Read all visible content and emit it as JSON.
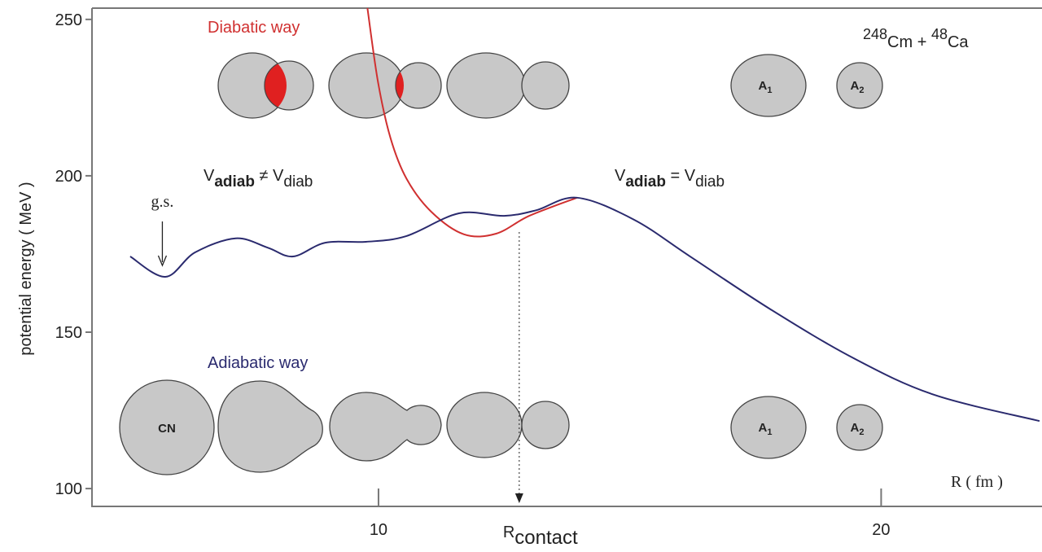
{
  "chart_data": {
    "type": "line",
    "y_label": "potential energy ( MeV )",
    "x_label": "R ( fm )",
    "xlim": [
      4.3,
      23.2
    ],
    "ylim": [
      94.3,
      253.6
    ],
    "xticks": [
      10,
      20
    ],
    "yticks": [
      100,
      150,
      200,
      250
    ],
    "series": [
      {
        "name": "Adiabatic way",
        "color": "#2a2a6e",
        "x": [
          5.06,
          5.76,
          6.35,
          7.16,
          7.8,
          8.3,
          8.94,
          9.75,
          10.55,
          11.6,
          12.5,
          13.14,
          13.95,
          15.08,
          16.2,
          17.8,
          19.45,
          21.05,
          23.15
        ],
        "values": [
          174.2,
          167.7,
          175.5,
          180,
          177,
          174.2,
          178.6,
          178.9,
          180.7,
          188,
          187.2,
          189,
          193,
          186,
          174.2,
          157.3,
          141.7,
          130,
          121.6
        ]
      },
      {
        "name": "Diabatic way",
        "color": "#d03030",
        "x": [
          9.78,
          9.99,
          10.24,
          10.56,
          11.05,
          11.7,
          12.34,
          13.0,
          13.95
        ],
        "values": [
          253.6,
          230,
          212,
          199,
          188.5,
          181.3,
          181.5,
          187.2,
          193
        ]
      }
    ],
    "annotations": {
      "ground_state": {
        "text": "g.s.",
        "x": 5.7
      },
      "r_contact": {
        "text": [
          "R",
          "contact"
        ],
        "x": 12.8
      },
      "not_equal": [
        "V",
        "adiab",
        " ≠ V",
        "diab"
      ],
      "equal": [
        "V",
        "adiab",
        " = V",
        "diab"
      ],
      "reaction": [
        "248",
        "Cm + ",
        "48",
        "Ca"
      ],
      "shapes_top": [
        "A",
        "1",
        "A",
        "2"
      ],
      "shapes_bottom": [
        "CN",
        "A",
        "1",
        "A",
        "2"
      ]
    }
  }
}
